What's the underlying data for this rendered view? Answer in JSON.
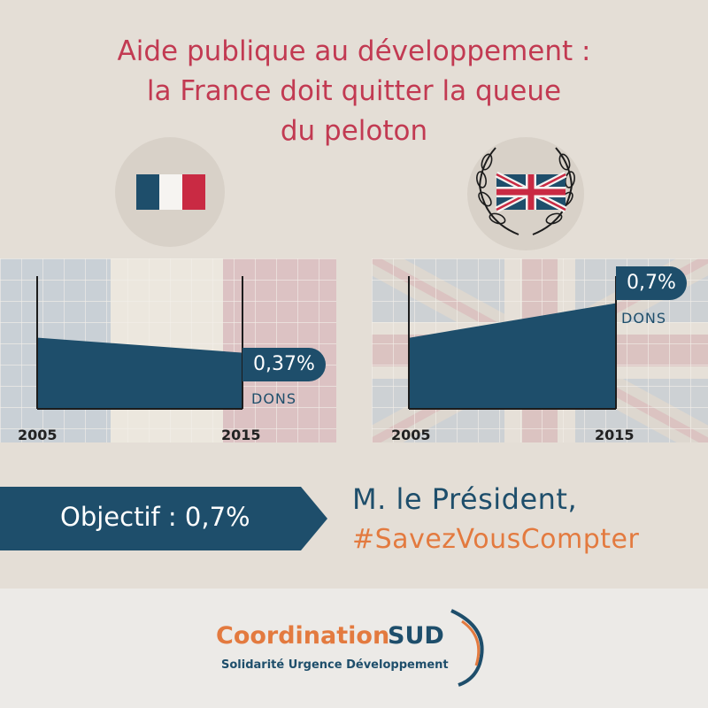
{
  "title": {
    "line1": "Aide publique au développement :",
    "line2": "la France doit quitter la queue",
    "line3": "du peloton"
  },
  "colors": {
    "title": "#c23a52",
    "navy": "#1e4e6b",
    "orange": "#e37a3f",
    "background": "#e4ded6"
  },
  "icons": {
    "france": "france-flag-icon",
    "uk": "uk-flag-icon",
    "laurel": "laurel-wreath-icon"
  },
  "chart_data": [
    {
      "type": "area",
      "country": "France",
      "x": [
        "2005",
        "2015"
      ],
      "values": [
        0.47,
        0.37
      ],
      "ylim": [
        0,
        1
      ],
      "value_label": "0,37%",
      "unit_label": "DONS",
      "x_start_label": "2005",
      "x_end_label": "2015"
    },
    {
      "type": "area",
      "country": "Royaume-Uni",
      "x": [
        "2005",
        "2015"
      ],
      "values": [
        0.47,
        0.7
      ],
      "ylim": [
        0,
        1
      ],
      "value_label": "0,7%",
      "unit_label": "DONS",
      "x_start_label": "2005",
      "x_end_label": "2015"
    }
  ],
  "objective": {
    "label": "Objectif : 0,7%"
  },
  "message": {
    "line1": "M. le Président,",
    "hashtag": "#SavezVousCompter"
  },
  "logo": {
    "word1": "Coordination",
    "word2": "SUD",
    "tagline": "Solidarité Urgence Développement"
  }
}
